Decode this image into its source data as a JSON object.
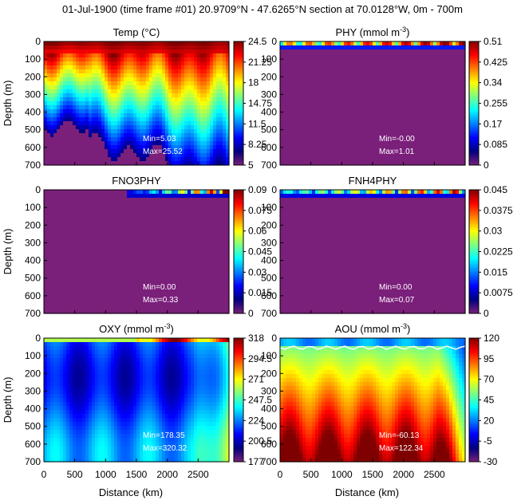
{
  "title": "01-Jul-1900 (time frame #01) 20.9709°N - 47.6265°N section at 70.0128°W, 0m - 700m",
  "x_axis_label": "Distance (km)",
  "y_axis_label": "Depth (m)",
  "chart_data": [
    {
      "type": "heatmap",
      "title": "Temp (°C)",
      "title_sup": "",
      "title_end": "",
      "xlim": [
        0,
        3000
      ],
      "ylim": [
        700,
        0
      ],
      "x_ticks": [
        0,
        500,
        1000,
        1500,
        2000,
        2500
      ],
      "y_ticks": [
        0,
        100,
        200,
        300,
        400,
        500,
        600,
        700
      ],
      "colorbar_ticks": [
        "24.5",
        "21.25",
        "18",
        "14.75",
        "11.5",
        "8.25",
        "5"
      ],
      "clim": [
        5,
        24.5
      ],
      "min_text": "Min=5.03",
      "max_text": "Max=25.52",
      "has_x_labels": false
    },
    {
      "type": "heatmap",
      "title": "PHY (mmol m",
      "title_sup": "-3",
      "title_end": ")",
      "xlim": [
        0,
        3000
      ],
      "ylim": [
        700,
        0
      ],
      "x_ticks": [
        0,
        500,
        1000,
        1500,
        2000,
        2500
      ],
      "y_ticks": [
        0,
        100,
        200,
        300,
        400,
        500,
        600,
        700
      ],
      "colorbar_ticks": [
        "0.51",
        "0.425",
        "0.34",
        "0.255",
        "0.17",
        "0.085",
        "0"
      ],
      "clim": [
        0,
        0.51
      ],
      "min_text": "Min=-0.00",
      "max_text": "Max=1.01",
      "has_x_labels": false
    },
    {
      "type": "heatmap",
      "title": "FNO3PHY",
      "title_sup": "",
      "title_end": "",
      "xlim": [
        0,
        3000
      ],
      "ylim": [
        700,
        0
      ],
      "x_ticks": [
        0,
        500,
        1000,
        1500,
        2000,
        2500
      ],
      "y_ticks": [
        0,
        100,
        200,
        300,
        400,
        500,
        600,
        700
      ],
      "colorbar_ticks": [
        "0.09",
        "0.075",
        "0.06",
        "0.045",
        "0.03",
        "0.015",
        "0"
      ],
      "clim": [
        0,
        0.09
      ],
      "min_text": "Min=0.00",
      "max_text": "Max=0.33",
      "has_x_labels": false
    },
    {
      "type": "heatmap",
      "title": "FNH4PHY",
      "title_sup": "",
      "title_end": "",
      "xlim": [
        0,
        3000
      ],
      "ylim": [
        700,
        0
      ],
      "x_ticks": [
        0,
        500,
        1000,
        1500,
        2000,
        2500
      ],
      "y_ticks": [
        0,
        100,
        200,
        300,
        400,
        500,
        600,
        700
      ],
      "colorbar_ticks": [
        "0.045",
        "0.0375",
        "0.03",
        "0.0225",
        "0.015",
        "0.0075",
        "0"
      ],
      "clim": [
        0,
        0.045
      ],
      "min_text": "Min=0.00",
      "max_text": "Max=0.07",
      "has_x_labels": false
    },
    {
      "type": "heatmap",
      "title": "OXY (mmol m",
      "title_sup": "-3",
      "title_end": ")",
      "xlim": [
        0,
        3000
      ],
      "ylim": [
        700,
        0
      ],
      "x_ticks": [
        0,
        500,
        1000,
        1500,
        2000,
        2500
      ],
      "y_ticks": [
        0,
        100,
        200,
        300,
        400,
        500,
        600,
        700
      ],
      "colorbar_ticks": [
        "318",
        "294.5",
        "271",
        "247.5",
        "224",
        "200.5",
        "177"
      ],
      "clim": [
        177,
        318
      ],
      "min_text": "Min=178.35",
      "max_text": "Max=320.32",
      "has_x_labels": true
    },
    {
      "type": "heatmap",
      "title": "AOU (mmol m",
      "title_sup": "-3",
      "title_end": ")",
      "xlim": [
        0,
        3000
      ],
      "ylim": [
        700,
        0
      ],
      "x_ticks": [
        0,
        500,
        1000,
        1500,
        2000,
        2500
      ],
      "y_ticks": [
        0,
        100,
        200,
        300,
        400,
        500,
        600,
        700
      ],
      "colorbar_ticks": [
        "120",
        "95",
        "70",
        "45",
        "20",
        "-5",
        "-30"
      ],
      "clim": [
        -30,
        120
      ],
      "min_text": "Min=-60.13",
      "max_text": "Max=122.34",
      "has_x_labels": true
    }
  ],
  "colors": {
    "background_fill": "#7a1f7a",
    "jet": [
      "#00007f",
      "#0000ff",
      "#007fff",
      "#00ffff",
      "#7fff7f",
      "#ffff00",
      "#ff7f00",
      "#ff0000",
      "#7f0000"
    ]
  }
}
